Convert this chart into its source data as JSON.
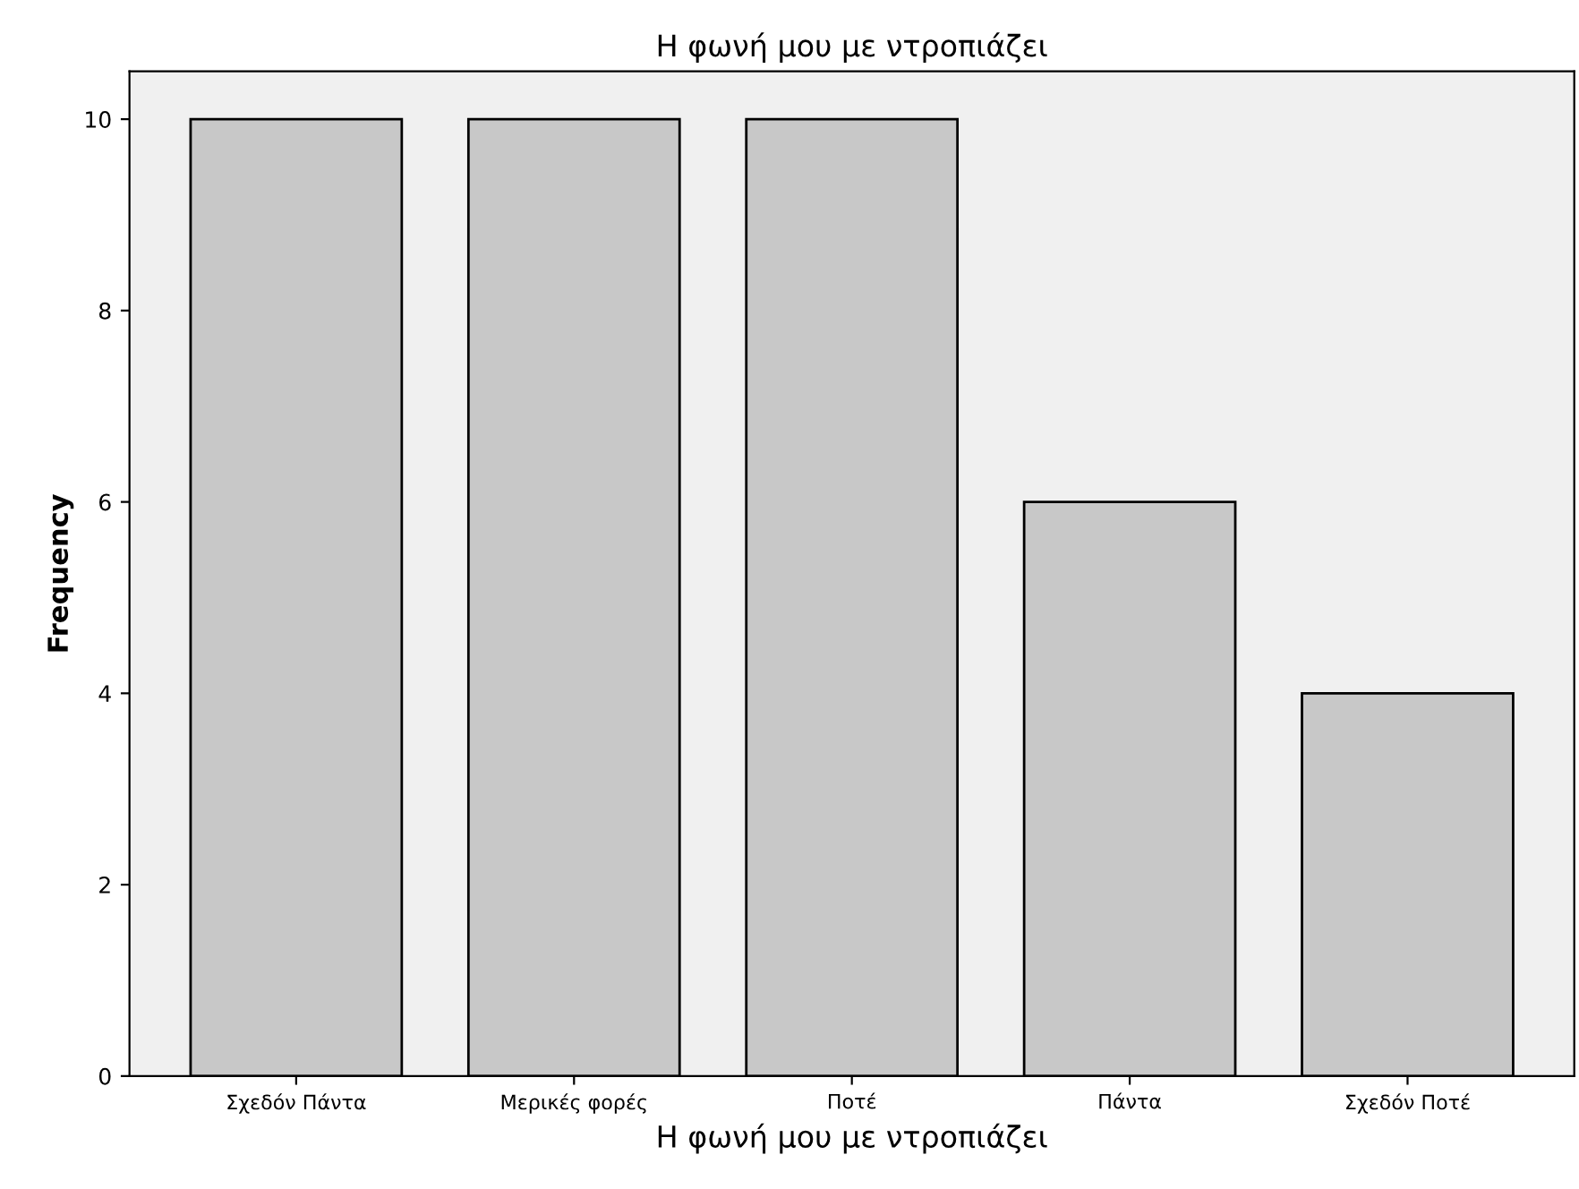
{
  "chart_data": {
    "type": "bar",
    "title": "Η φωνή μου με ντροπιάζει",
    "xlabel": "Η φωνή μου με ντροπιάζει",
    "ylabel": "Frequency",
    "categories": [
      "Σχεδόν Πάντα",
      "Μερικές φορές",
      "Ποτέ",
      "Πάντα",
      "Σχεδόν Ποτέ"
    ],
    "values": [
      10,
      10,
      10,
      6,
      4
    ],
    "color": "#c8c8c8",
    "ylim": [
      0,
      10.5
    ],
    "yticks": [
      0,
      2,
      4,
      6,
      8,
      10
    ],
    "grid": false
  }
}
